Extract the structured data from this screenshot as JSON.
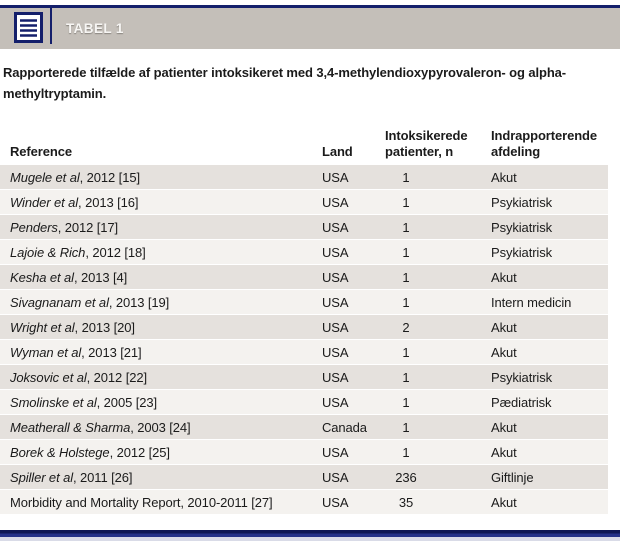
{
  "header": {
    "tag": "TABEL 1",
    "icon": "table-list-icon"
  },
  "caption": {
    "line1": "Rapporterede tilfælde af patienter intoksikeret med 3,4-methylendioxypyrovaleron- og alpha-",
    "line2": "methyltryptamin."
  },
  "table": {
    "columns": [
      "Reference",
      "Land",
      "Intoksikerede patienter, n",
      "Indrapporterende afdeling"
    ],
    "rows": [
      {
        "ref_author": "Mugele et al",
        "ref_rest": ", 2012 [15]",
        "land": "USA",
        "n": "1",
        "afdeling": "Akut"
      },
      {
        "ref_author": "Winder et al",
        "ref_rest": ", 2013 [16]",
        "land": "USA",
        "n": "1",
        "afdeling": "Psykiatrisk"
      },
      {
        "ref_author": "Penders",
        "ref_rest": ", 2012 [17]",
        "land": "USA",
        "n": "1",
        "afdeling": "Psykiatrisk"
      },
      {
        "ref_author": "Lajoie & Rich",
        "ref_rest": ", 2012 [18]",
        "land": "USA",
        "n": "1",
        "afdeling": "Psykiatrisk"
      },
      {
        "ref_author": "Kesha et al",
        "ref_rest": ", 2013 [4]",
        "land": "USA",
        "n": "1",
        "afdeling": "Akut"
      },
      {
        "ref_author": "Sivagnanam et al",
        "ref_rest": ", 2013 [19]",
        "land": "USA",
        "n": "1",
        "afdeling": "Intern medicin"
      },
      {
        "ref_author": "Wright et al",
        "ref_rest": ", 2013 [20]",
        "land": "USA",
        "n": "2",
        "afdeling": "Akut"
      },
      {
        "ref_author": "Wyman et al",
        "ref_rest": ", 2013 [21]",
        "land": "USA",
        "n": "1",
        "afdeling": "Akut"
      },
      {
        "ref_author": "Joksovic et al",
        "ref_rest": ", 2012 [22]",
        "land": "USA",
        "n": "1",
        "afdeling": "Psykiatrisk"
      },
      {
        "ref_author": "Smolinske et al",
        "ref_rest": ", 2005 [23]",
        "land": "USA",
        "n": "1",
        "afdeling": "Pædiatrisk"
      },
      {
        "ref_author": "Meatherall & Sharma",
        "ref_rest": ", 2003 [24]",
        "land": "Canada",
        "n": "1",
        "afdeling": "Akut"
      },
      {
        "ref_author": "Borek & Holstege",
        "ref_rest": ", 2012 [25]",
        "land": "USA",
        "n": "1",
        "afdeling": "Akut"
      },
      {
        "ref_author": "Spiller et al",
        "ref_rest": ", 2011 [26]",
        "land": "USA",
        "n": "236",
        "afdeling": "Giftlinje"
      },
      {
        "ref_author": "",
        "ref_rest": "Morbidity and Mortality Report, 2010-2011 [27]",
        "land": "USA",
        "n": "35",
        "afdeling": "Akut"
      }
    ]
  },
  "colors": {
    "navy": "#141f6b",
    "navy-bright": "#243188",
    "header-gray": "#c4bfb9",
    "row-gray": "#e5e1dd",
    "row-light": "#f4f2ef",
    "bottom-strip": "#d9dbe7"
  }
}
